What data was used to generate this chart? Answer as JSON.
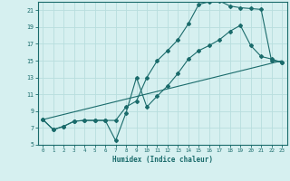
{
  "xlabel": "Humidex (Indice chaleur)",
  "bg_color": "#d6f0f0",
  "grid_color": "#b8dede",
  "line_color": "#1a6b6b",
  "xlim": [
    -0.5,
    23.5
  ],
  "ylim": [
    5,
    22
  ],
  "yticks": [
    5,
    7,
    9,
    11,
    13,
    15,
    17,
    19,
    21
  ],
  "xticks": [
    0,
    1,
    2,
    3,
    4,
    5,
    6,
    7,
    8,
    9,
    10,
    11,
    12,
    13,
    14,
    15,
    16,
    17,
    18,
    19,
    20,
    21,
    22,
    23
  ],
  "line1_x": [
    0,
    1,
    2,
    3,
    4,
    5,
    6,
    7,
    8,
    9,
    10,
    11,
    12,
    13,
    14,
    15,
    16,
    17,
    18,
    19,
    20,
    21,
    22,
    23
  ],
  "line1_y": [
    8.0,
    6.8,
    7.2,
    7.8,
    7.9,
    7.9,
    7.9,
    7.9,
    9.5,
    10.2,
    13.0,
    15.0,
    16.2,
    17.5,
    19.4,
    21.7,
    22.0,
    22.1,
    21.5,
    21.3,
    21.2,
    21.1,
    15.0,
    14.8
  ],
  "line2_x": [
    0,
    1,
    2,
    3,
    4,
    5,
    6,
    7,
    8,
    9,
    10,
    11,
    12,
    13,
    14,
    15,
    16,
    17,
    18,
    19,
    20,
    21,
    22,
    23
  ],
  "line2_y": [
    8.0,
    6.8,
    7.2,
    7.8,
    7.9,
    7.9,
    7.9,
    5.5,
    8.8,
    13.0,
    9.5,
    10.8,
    12.0,
    13.5,
    15.2,
    16.2,
    16.8,
    17.5,
    18.5,
    19.2,
    16.8,
    15.5,
    15.2,
    14.8
  ],
  "line3_x": [
    0,
    23
  ],
  "line3_y": [
    8.0,
    15.0
  ]
}
